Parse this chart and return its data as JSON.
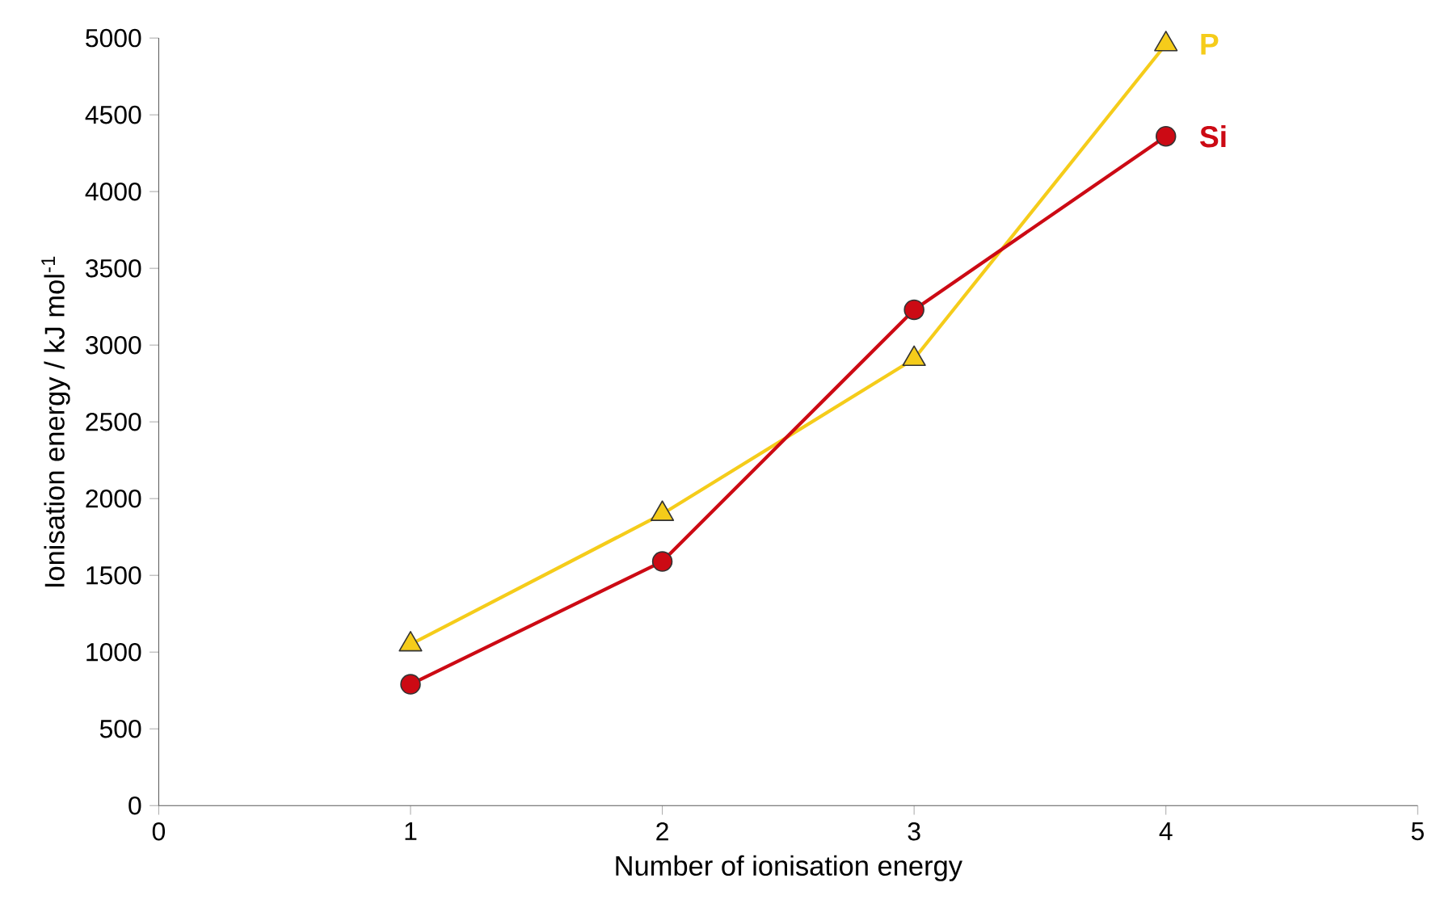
{
  "chart_data": {
    "type": "line",
    "xlabel": "Number of ionisation energy",
    "ylabel": "Ionisation energy / kJ mol$^{-1}$",
    "x": [
      1,
      2,
      3,
      4
    ],
    "series": [
      {
        "name": "P",
        "color": "#f5cc1a",
        "marker": "triangle",
        "values": [
          1050,
          1900,
          2910,
          4960
        ]
      },
      {
        "name": "Si",
        "color": "#cc0a14",
        "marker": "circle",
        "values": [
          790,
          1590,
          3230,
          4360
        ]
      }
    ],
    "xlim": [
      0,
      5
    ],
    "xticks": [
      0,
      1,
      2,
      3,
      4,
      5
    ],
    "ylim": [
      0,
      5000
    ],
    "yticks": [
      0,
      500,
      1000,
      1500,
      2000,
      2500,
      3000,
      3500,
      4000,
      4500,
      5000
    ],
    "grid": false,
    "line_style": "solid"
  }
}
